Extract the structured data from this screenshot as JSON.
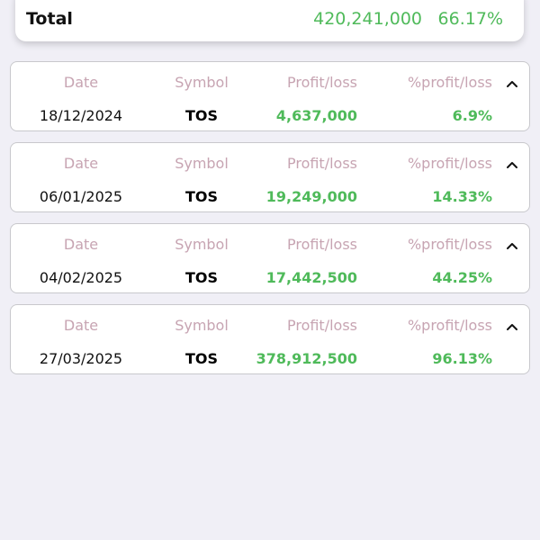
{
  "summary": {
    "label": "Total",
    "amount": "420,241,000",
    "percent": "66.17%"
  },
  "columns": {
    "date": "Date",
    "symbol": "Symbol",
    "profit_loss": "Profit/loss",
    "percent_profit_loss": "%profit/loss"
  },
  "trades": [
    {
      "date": "18/12/2024",
      "symbol": "TOS",
      "profit_loss": "4,637,000",
      "percent": "6.9%"
    },
    {
      "date": "06/01/2025",
      "symbol": "TOS",
      "profit_loss": "19,249,000",
      "percent": "14.33%"
    },
    {
      "date": "04/02/2025",
      "symbol": "TOS",
      "profit_loss": "17,442,500",
      "percent": "44.25%"
    },
    {
      "date": "27/03/2025",
      "symbol": "TOS",
      "profit_loss": "378,912,500",
      "percent": "96.13%"
    }
  ],
  "icons": {
    "collapse": "chevron-up-icon"
  },
  "colors": {
    "positive": "#4fba5a",
    "header_text": "#c7a4b2",
    "background": "#f0eff6"
  }
}
